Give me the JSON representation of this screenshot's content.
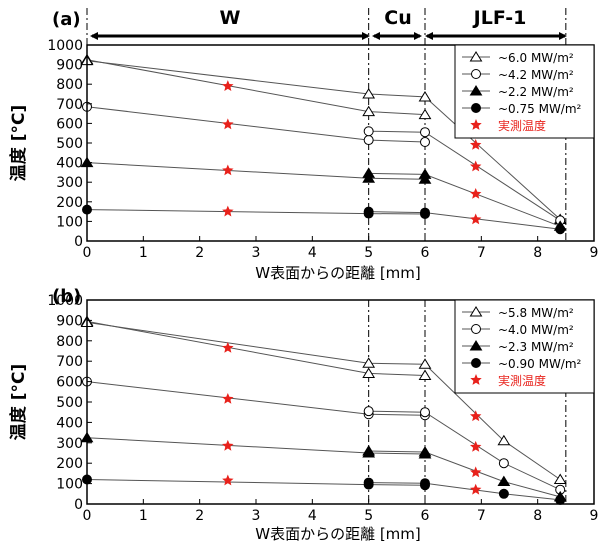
{
  "chart_data": [
    {
      "type": "line",
      "panel_label": "(a)",
      "region_labels": [
        "W",
        "Cu",
        "JLF-1"
      ],
      "xlabel": "W表面からの距離 [mm]",
      "ylabel": "温度 [°C]",
      "xlim": [
        0,
        9
      ],
      "ylim": [
        0,
        1000
      ],
      "xticks": [
        "0",
        "1",
        "2",
        "3",
        "4",
        "5",
        "6",
        "7",
        "8",
        "9"
      ],
      "yticks": [
        "0",
        "100",
        "200",
        "300",
        "400",
        "500",
        "600",
        "700",
        "800",
        "900",
        "1000"
      ],
      "boundaries_x": [
        0,
        5,
        6,
        8.5
      ],
      "legend_position": "top-right",
      "series": [
        {
          "name": "~6.0 MW/m²",
          "marker": "triangle-open",
          "lines": [
            [
              [
                0,
                925
              ],
              [
                5,
                660
              ],
              [
                6,
                645
              ]
            ],
            [
              [
                0,
                920
              ],
              [
                5,
                750
              ],
              [
                6,
                735
              ],
              [
                8.4,
                110
              ]
            ]
          ]
        },
        {
          "name": "~4.2 MW/m²",
          "marker": "circle-open",
          "lines": [
            [
              [
                0,
                685
              ],
              [
                5,
                515
              ],
              [
                6,
                505
              ]
            ],
            [
              [
                5,
                560
              ],
              [
                6,
                555
              ],
              [
                8.4,
                105
              ]
            ]
          ]
        },
        {
          "name": "~2.2 MW/m²",
          "marker": "triangle-filled",
          "lines": [
            [
              [
                0,
                400
              ],
              [
                5,
                320
              ],
              [
                6,
                315
              ]
            ],
            [
              [
                5,
                345
              ],
              [
                6,
                340
              ],
              [
                8.4,
                75
              ]
            ]
          ]
        },
        {
          "name": "~0.75 MW/m²",
          "marker": "circle-filled",
          "lines": [
            [
              [
                0,
                160
              ],
              [
                5,
                140
              ],
              [
                6,
                138
              ]
            ],
            [
              [
                5,
                150
              ],
              [
                6,
                145
              ],
              [
                8.4,
                60
              ]
            ]
          ]
        },
        {
          "name": "実測温度",
          "marker": "star",
          "color": "#e8211b",
          "points": [
            [
              2.5,
              790
            ],
            [
              2.5,
              595
            ],
            [
              2.5,
              360
            ],
            [
              2.5,
              150
            ],
            [
              6.9,
              490
            ],
            [
              6.9,
              380
            ],
            [
              6.9,
              240
            ],
            [
              6.9,
              110
            ]
          ]
        }
      ]
    },
    {
      "type": "line",
      "panel_label": "(b)",
      "xlabel": "W表面からの距離 [mm]",
      "ylabel": "温度 [°C]",
      "xlim": [
        0,
        9
      ],
      "ylim": [
        0,
        1000
      ],
      "xticks": [
        "0",
        "1",
        "2",
        "3",
        "4",
        "5",
        "6",
        "7",
        "8",
        "9"
      ],
      "yticks": [
        "0",
        "100",
        "200",
        "300",
        "400",
        "500",
        "600",
        "700",
        "800",
        "900",
        "1000"
      ],
      "boundaries_x": [
        0,
        5,
        6,
        8.5
      ],
      "legend_position": "top-right",
      "series": [
        {
          "name": "~5.8 MW/m²",
          "marker": "triangle-open",
          "lines": [
            [
              [
                0,
                895
              ],
              [
                5,
                640
              ],
              [
                6,
                630
              ]
            ],
            [
              [
                0,
                890
              ],
              [
                5,
                690
              ],
              [
                6,
                685
              ],
              [
                7.4,
                310
              ],
              [
                8.4,
                120
              ]
            ]
          ]
        },
        {
          "name": "~4.0 MW/m²",
          "marker": "circle-open",
          "lines": [
            [
              [
                0,
                600
              ],
              [
                5,
                440
              ],
              [
                6,
                435
              ]
            ],
            [
              [
                5,
                455
              ],
              [
                6,
                450
              ],
              [
                7.4,
                200
              ],
              [
                8.4,
                70
              ]
            ]
          ]
        },
        {
          "name": "~2.3 MW/m²",
          "marker": "triangle-filled",
          "lines": [
            [
              [
                0,
                325
              ],
              [
                5,
                250
              ],
              [
                6,
                245
              ]
            ],
            [
              [
                5,
                260
              ],
              [
                6,
                255
              ],
              [
                7.4,
                110
              ],
              [
                8.4,
                35
              ]
            ]
          ]
        },
        {
          "name": "~0.90 MW/m²",
          "marker": "circle-filled",
          "lines": [
            [
              [
                0,
                120
              ],
              [
                5,
                95
              ],
              [
                6,
                92
              ]
            ],
            [
              [
                5,
                105
              ],
              [
                6,
                102
              ],
              [
                7.4,
                50
              ],
              [
                8.4,
                20
              ]
            ]
          ]
        },
        {
          "name": "実測温度",
          "marker": "star",
          "color": "#e8211b",
          "points": [
            [
              2.5,
              765
            ],
            [
              2.5,
              515
            ],
            [
              2.5,
              285
            ],
            [
              2.5,
              115
            ],
            [
              6.9,
              430
            ],
            [
              6.9,
              280
            ],
            [
              6.9,
              155
            ],
            [
              6.9,
              70
            ]
          ]
        }
      ]
    }
  ]
}
